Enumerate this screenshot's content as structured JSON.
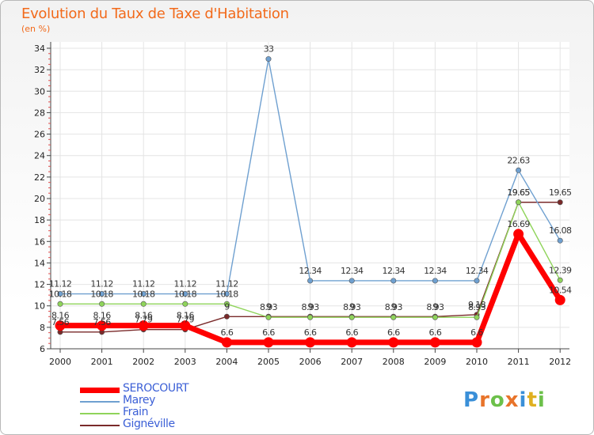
{
  "title": "Evolution du Taux de Taxe d'Habitation",
  "subtitle": "(en %)",
  "logo": "Proxiti",
  "chart_data": {
    "type": "line",
    "title": "Evolution du Taux de Taxe d'Habitation",
    "ylabel": "(en %)",
    "xlabel": "",
    "ylim": [
      6,
      34
    ],
    "yticks": [
      6,
      8,
      10,
      12,
      14,
      16,
      18,
      20,
      22,
      24,
      26,
      28,
      30,
      32,
      34
    ],
    "x": [
      "2000",
      "2001",
      "2002",
      "2003",
      "2004",
      "2005",
      "2006",
      "2007",
      "2008",
      "2009",
      "2010",
      "2011",
      "2012"
    ],
    "grid": true,
    "legend_position": "bottom-left",
    "series": [
      {
        "name": "SEROCOURT",
        "color": "#ff0000",
        "values": [
          8.16,
          8.16,
          8.16,
          8.16,
          6.6,
          6.6,
          6.6,
          6.6,
          6.6,
          6.6,
          6.6,
          16.69,
          10.54
        ],
        "labels": [
          "8.16",
          "8.16",
          "8.16",
          "8.16",
          "6.6",
          "6.6",
          "6.6",
          "6.6",
          "6.6",
          "6.6",
          "6.6",
          "16.69",
          "10.54"
        ]
      },
      {
        "name": "Marey",
        "color": "#6fa0d0",
        "values": [
          11.12,
          11.12,
          11.12,
          11.12,
          11.12,
          33,
          12.34,
          12.34,
          12.34,
          12.34,
          12.34,
          22.63,
          16.08
        ],
        "labels": [
          "11.12",
          "11.12",
          "11.12",
          "11.12",
          "11.12",
          "33",
          "12.34",
          "12.34",
          "12.34",
          "12.34",
          "12.34",
          "22.63",
          "16.08"
        ]
      },
      {
        "name": "Frain",
        "color": "#8fd45a",
        "values": [
          10.18,
          10.18,
          10.18,
          10.18,
          10.18,
          8.93,
          8.93,
          8.93,
          8.93,
          8.93,
          8.93,
          19.65,
          12.39
        ],
        "labels": [
          "10.18",
          "10.18",
          "10.18",
          "10.18",
          "10.18",
          "8.93",
          "8.93",
          "8.93",
          "8.93",
          "8.93",
          "8.93",
          "19.65",
          "12.39"
        ]
      },
      {
        "name": "Gignéville",
        "color": "#7a2a2a",
        "values": [
          7.56,
          7.56,
          7.79,
          7.79,
          9,
          9,
          9,
          9,
          9,
          9,
          9.18,
          19.65,
          19.65
        ],
        "labels": [
          "7.56",
          "7.56",
          "7.79",
          "7.79",
          "9",
          "9",
          "9",
          "9",
          "9",
          "9",
          "9.18",
          "19.65",
          "19.65"
        ]
      }
    ]
  }
}
